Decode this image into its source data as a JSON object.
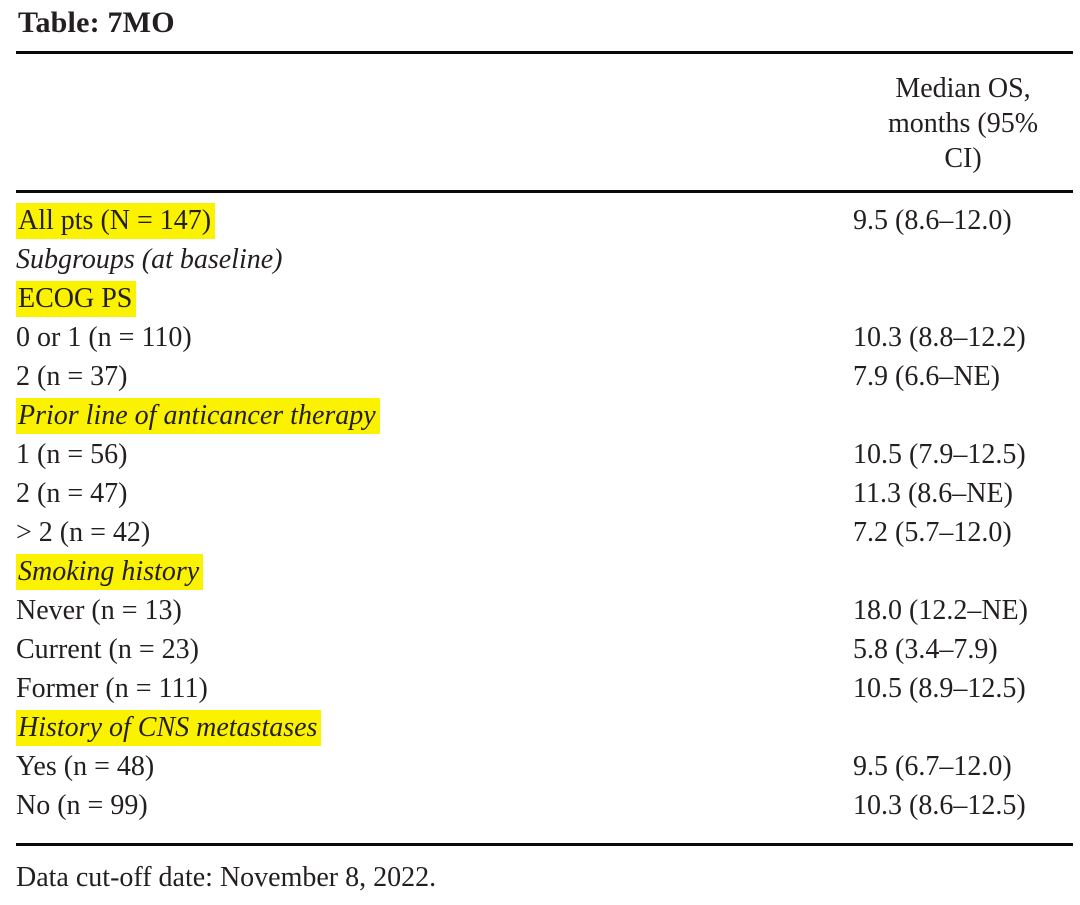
{
  "title": "Table: 7MO",
  "columns": {
    "value_header": "Median OS, months (95% CI)"
  },
  "rows": [
    {
      "label": "All pts (N = 147)",
      "value": "9.5 (8.6–12.0)",
      "highlight": true,
      "italic": false
    },
    {
      "label": "Subgroups (at baseline)",
      "value": "",
      "highlight": false,
      "italic": true
    },
    {
      "label": "ECOG PS",
      "value": "",
      "highlight": true,
      "italic": false
    },
    {
      "label": "0 or 1 (n = 110)",
      "value": "10.3 (8.8–12.2)",
      "highlight": false,
      "italic": false
    },
    {
      "label": "2 (n = 37)",
      "value": "7.9 (6.6–NE)",
      "highlight": false,
      "italic": false
    },
    {
      "label": "Prior line of anticancer therapy",
      "value": "",
      "highlight": true,
      "italic": true
    },
    {
      "label": "1 (n = 56)",
      "value": "10.5 (7.9–12.5)",
      "highlight": false,
      "italic": false
    },
    {
      "label": "2 (n = 47)",
      "value": "11.3 (8.6–NE)",
      "highlight": false,
      "italic": false
    },
    {
      "label": "> 2 (n = 42)",
      "value": "7.2 (5.7–12.0)",
      "highlight": false,
      "italic": false
    },
    {
      "label": "Smoking history",
      "value": "",
      "highlight": true,
      "italic": true
    },
    {
      "label": "Never (n = 13)",
      "value": "18.0 (12.2–NE)",
      "highlight": false,
      "italic": false
    },
    {
      "label": "Current (n = 23)",
      "value": "5.8 (3.4–7.9)",
      "highlight": false,
      "italic": false
    },
    {
      "label": "Former (n = 111)",
      "value": "10.5 (8.9–12.5)",
      "highlight": false,
      "italic": false
    },
    {
      "label": "History of CNS metastases",
      "value": "",
      "highlight": true,
      "italic": true
    },
    {
      "label": "Yes (n = 48)",
      "value": "9.5 (6.7–12.0)",
      "highlight": false,
      "italic": false
    },
    {
      "label": "No (n = 99)",
      "value": "10.3 (8.6–12.5)",
      "highlight": false,
      "italic": false
    }
  ],
  "footnote": "Data cut-off date: November 8, 2022.",
  "colors": {
    "highlight": "#fbf200",
    "text": "#231f20",
    "rule": "#0a0a0a"
  },
  "chart_data": {
    "type": "table",
    "title": "Table: 7MO",
    "value_column": "Median OS, months (95% CI)",
    "rows": [
      [
        "All pts (N = 147)",
        "9.5 (8.6–12.0)"
      ],
      [
        "Subgroups (at baseline)",
        ""
      ],
      [
        "ECOG PS",
        ""
      ],
      [
        "0 or 1 (n = 110)",
        "10.3 (8.8–12.2)"
      ],
      [
        "2 (n = 37)",
        "7.9 (6.6–NE)"
      ],
      [
        "Prior line of anticancer therapy",
        ""
      ],
      [
        "1 (n = 56)",
        "10.5 (7.9–12.5)"
      ],
      [
        "2 (n = 47)",
        "11.3 (8.6–NE)"
      ],
      [
        "> 2 (n = 42)",
        "7.2 (5.7–12.0)"
      ],
      [
        "Smoking history",
        ""
      ],
      [
        "Never (n = 13)",
        "18.0 (12.2–NE)"
      ],
      [
        "Current (n = 23)",
        "5.8 (3.4–7.9)"
      ],
      [
        "Former (n = 111)",
        "10.5 (8.9–12.5)"
      ],
      [
        "History of CNS metastases",
        ""
      ],
      [
        "Yes (n = 48)",
        "9.5 (6.7–12.0)"
      ],
      [
        "No (n = 99)",
        "10.3 (8.6–12.5)"
      ]
    ],
    "footnote": "Data cut-off date: November 8, 2022."
  }
}
